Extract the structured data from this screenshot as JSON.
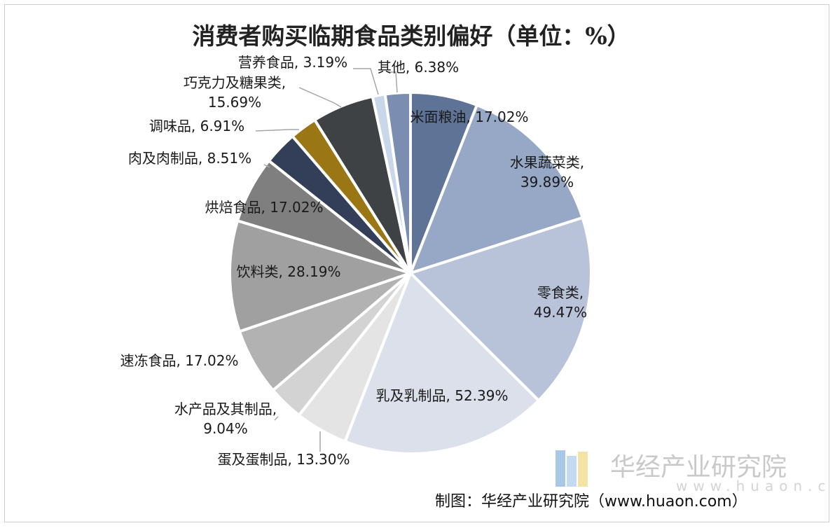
{
  "chart_data": {
    "type": "pie",
    "title": "消费者购买临期食品类别偏好（单位：%）",
    "unit": "%",
    "slices": [
      {
        "label": "米面粮油",
        "value": 17.02,
        "display": "17.02%",
        "color": "#5f7396"
      },
      {
        "label": "水果蔬菜类",
        "value": 39.89,
        "display": "39.89%",
        "color": "#97a8c6"
      },
      {
        "label": "零食类",
        "value": 49.47,
        "display": "49.47%",
        "color": "#b8c3d9"
      },
      {
        "label": "乳及乳制品",
        "value": 52.39,
        "display": "52.39%",
        "color": "#dbe0eb"
      },
      {
        "label": "蛋及蛋制品",
        "value": 13.3,
        "display": "13.30%",
        "color": "#e4e4e4"
      },
      {
        "label": "水产品及其制品",
        "value": 9.04,
        "display": "9.04%",
        "color": "#d3d3d3"
      },
      {
        "label": "速冻食品",
        "value": 17.02,
        "display": "17.02%",
        "color": "#b2b2b2"
      },
      {
        "label": "饮料类",
        "value": 28.19,
        "display": "28.19%",
        "color": "#a0a0a0"
      },
      {
        "label": "烘焙食品",
        "value": 17.02,
        "display": "17.02%",
        "color": "#7f7f7f"
      },
      {
        "label": "肉及肉制品",
        "value": 8.51,
        "display": "8.51%",
        "color": "#333f58"
      },
      {
        "label": "调味品",
        "value": 6.91,
        "display": "6.91%",
        "color": "#9b7614"
      },
      {
        "label": "巧克力及糖果类",
        "value": 15.69,
        "display": "15.69%",
        "color": "#3f4245"
      },
      {
        "label": "营养食品",
        "value": 3.19,
        "display": "3.19%",
        "color": "#c8d8ea"
      },
      {
        "label": "其他",
        "value": 6.38,
        "display": "6.38%",
        "color": "#7b8db0"
      }
    ],
    "legend": "none"
  },
  "footer": {
    "source": "制图：华经产业研究院（www.huaon.com）"
  },
  "watermark": {
    "text": "华经产业研究院",
    "subtext": "www.huaon.com"
  }
}
